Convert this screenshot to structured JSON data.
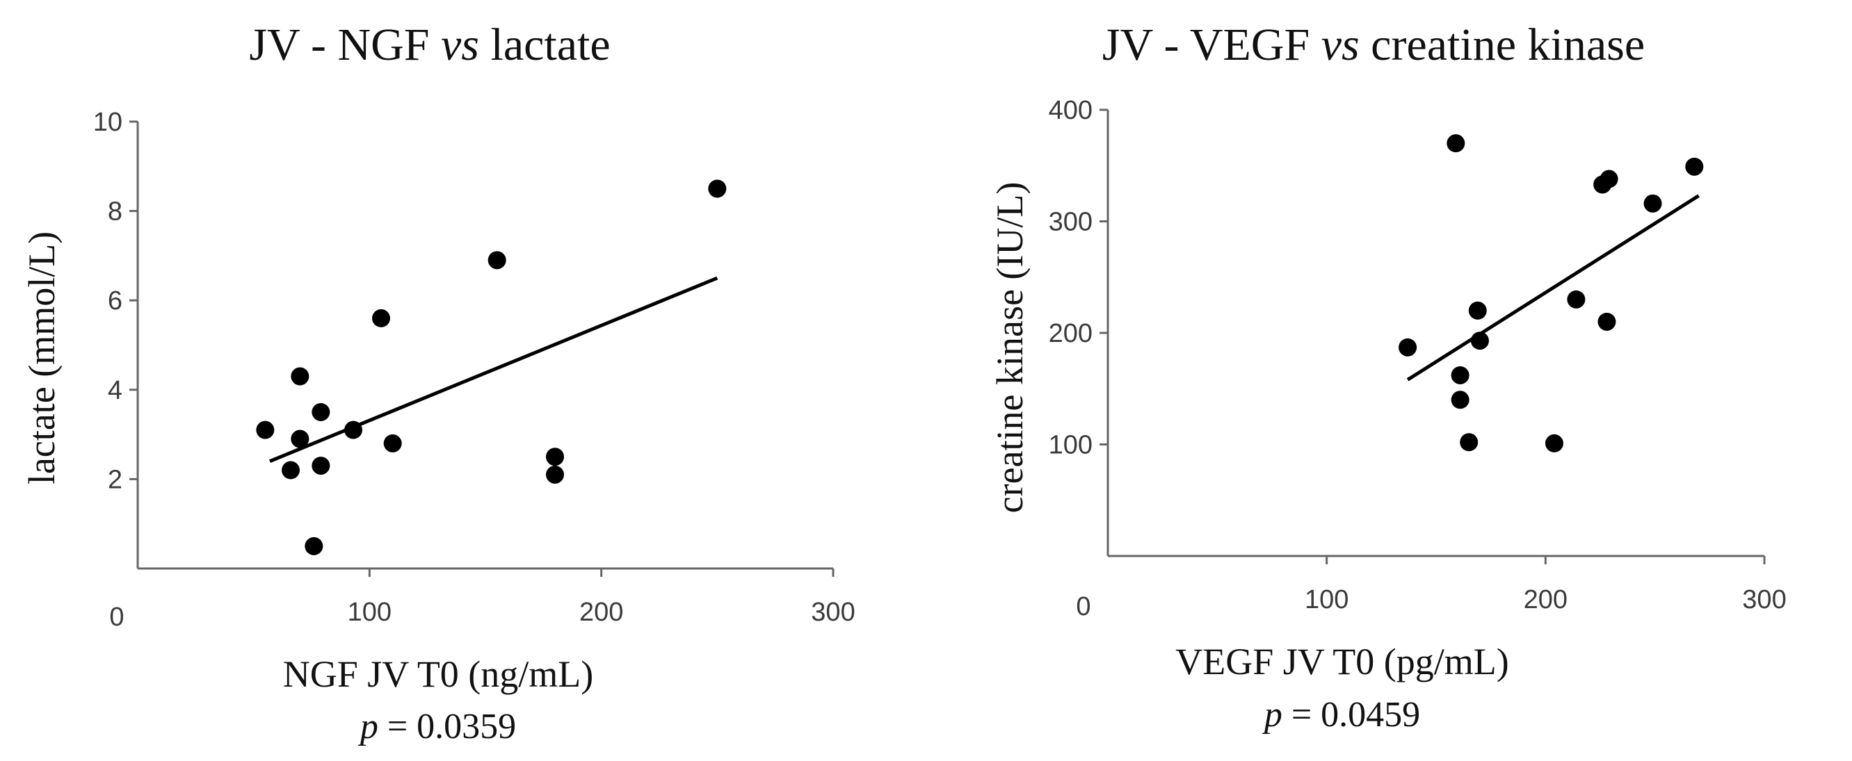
{
  "chart_data": [
    {
      "type": "scatter",
      "title_prefix": "JV - NGF",
      "title_italic": "vs",
      "title_suffix": "lactate",
      "xlabel": "NGF JV T0 (ng/mL)",
      "ylabel": "lactate (mmol/L)",
      "p_label": "p",
      "p_value": "= 0.0359",
      "xlim": [
        0,
        300
      ],
      "ylim": [
        0,
        10
      ],
      "x_ticks": [
        0,
        100,
        200,
        300
      ],
      "y_ticks": [
        2,
        4,
        6,
        8,
        10
      ],
      "x_tick_labels": [
        "0",
        "100",
        "200",
        "300"
      ],
      "y_tick_labels": [
        "2",
        "4",
        "6",
        "8",
        "10"
      ],
      "points": [
        {
          "x": 55,
          "y": 3.1
        },
        {
          "x": 66,
          "y": 2.2
        },
        {
          "x": 70,
          "y": 4.3
        },
        {
          "x": 70,
          "y": 2.9
        },
        {
          "x": 76,
          "y": 0.5
        },
        {
          "x": 79,
          "y": 3.5
        },
        {
          "x": 79,
          "y": 2.3
        },
        {
          "x": 93,
          "y": 3.1
        },
        {
          "x": 105,
          "y": 5.6
        },
        {
          "x": 110,
          "y": 2.8
        },
        {
          "x": 155,
          "y": 6.9
        },
        {
          "x": 180,
          "y": 2.5
        },
        {
          "x": 180,
          "y": 2.1
        },
        {
          "x": 250,
          "y": 8.5
        }
      ],
      "trend": {
        "x1": 57,
        "y1": 2.4,
        "x2": 250,
        "y2": 6.5
      }
    },
    {
      "type": "scatter",
      "title_prefix": "JV - VEGF",
      "title_italic": "vs",
      "title_suffix": "creatine kinase",
      "xlabel": "VEGF JV T0 (pg/mL)",
      "ylabel": "creatine kinase (IU/L)",
      "p_label": "p",
      "p_value": "= 0.0459",
      "xlim": [
        0,
        300
      ],
      "ylim": [
        0,
        400
      ],
      "x_ticks": [
        0,
        100,
        200,
        300
      ],
      "y_ticks": [
        100,
        200,
        300,
        400
      ],
      "x_tick_labels": [
        "0",
        "100",
        "200",
        "300"
      ],
      "y_tick_labels": [
        "100",
        "200",
        "300",
        "400"
      ],
      "points": [
        {
          "x": 137,
          "y": 187
        },
        {
          "x": 159,
          "y": 370
        },
        {
          "x": 161,
          "y": 162
        },
        {
          "x": 161,
          "y": 140
        },
        {
          "x": 165,
          "y": 102
        },
        {
          "x": 169,
          "y": 220
        },
        {
          "x": 170,
          "y": 193
        },
        {
          "x": 204,
          "y": 101
        },
        {
          "x": 214,
          "y": 230
        },
        {
          "x": 226,
          "y": 333
        },
        {
          "x": 229,
          "y": 338
        },
        {
          "x": 228,
          "y": 210
        },
        {
          "x": 249,
          "y": 316
        },
        {
          "x": 268,
          "y": 349
        }
      ],
      "trend": {
        "x1": 137,
        "y1": 158,
        "x2": 270,
        "y2": 323
      }
    }
  ]
}
